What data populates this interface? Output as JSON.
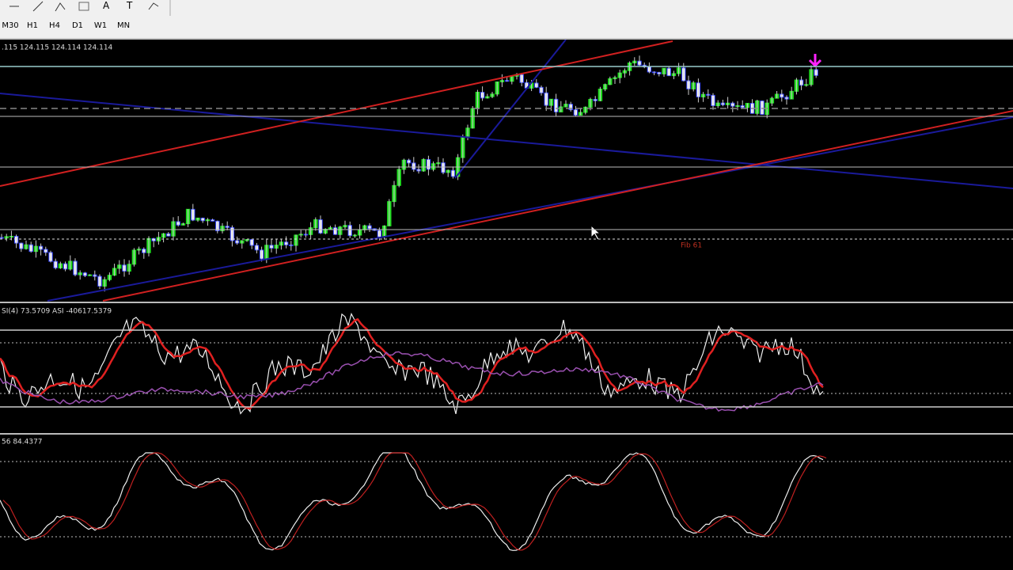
{
  "toolbar": {
    "text_tools": [
      "A",
      "T"
    ],
    "timeframes": [
      "M30",
      "H1",
      "H4",
      "D1",
      "W1",
      "MN"
    ]
  },
  "main_chart": {
    "ohlc_header": ".115 124.115 124.114 124.114",
    "fib_label": "Fib 61"
  },
  "indicator_1": {
    "label": "SI(4) 73.5709  ASI -40617.5379"
  },
  "indicator_2": {
    "label": "56 84.4377"
  }
}
